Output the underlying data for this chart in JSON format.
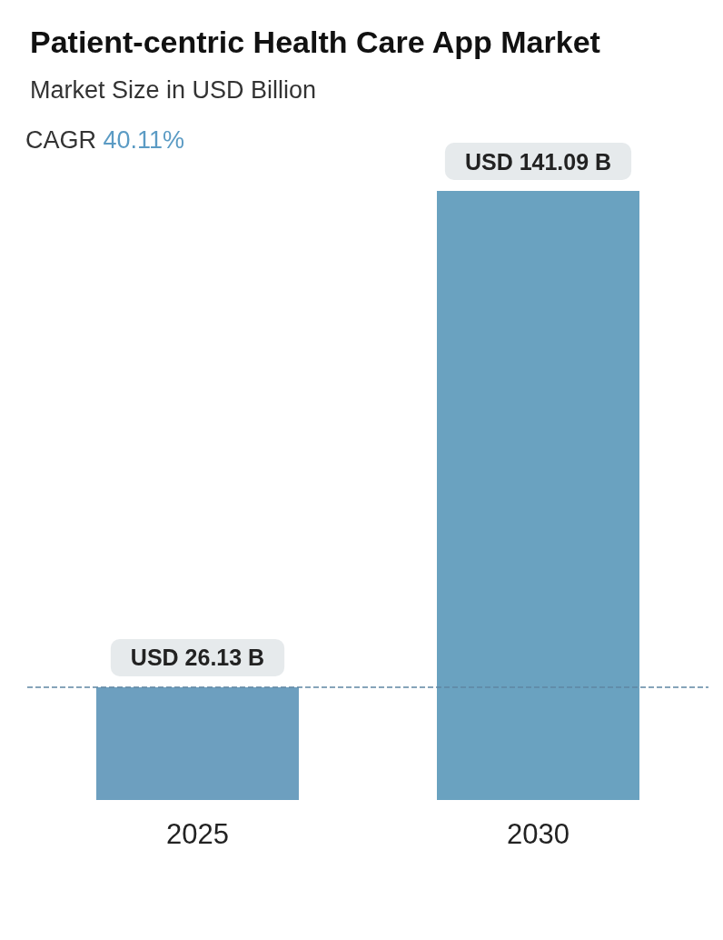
{
  "chart_data": {
    "type": "bar",
    "title": "Patient-centric Health Care App Market",
    "subtitle": "Market Size in USD Billion",
    "annotations": [
      "CAGR 40.11%"
    ],
    "categories": [
      "2025",
      "2030"
    ],
    "values": [
      26.13,
      141.09
    ],
    "value_labels": [
      "USD 26.13 B",
      "USD 141.09 B"
    ],
    "colors": [
      "#6d9fbf",
      "#6aa2c0"
    ],
    "ref_lines": [
      {
        "axis": "y",
        "value": 26.13,
        "color": "#5f86a3",
        "line_style": "dashed"
      }
    ],
    "grid": false
  }
}
